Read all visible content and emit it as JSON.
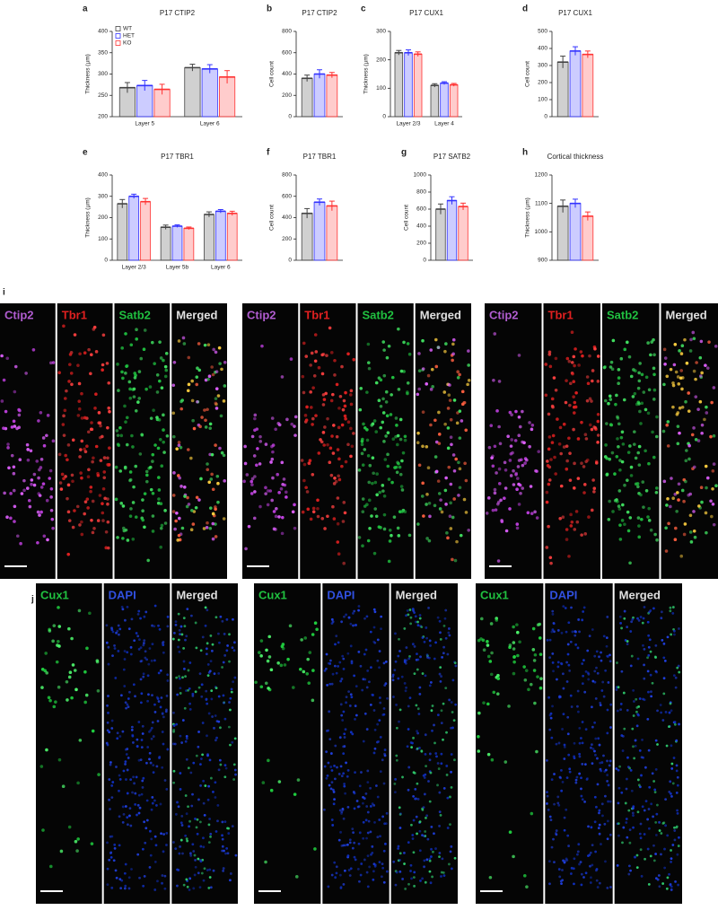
{
  "chart_data": [
    {
      "type": "bar",
      "label": "a",
      "title": "P17 CTIP2",
      "ylabel": "Thickness (µm)",
      "categories": [
        "Layer 5",
        "Layer 6"
      ],
      "ylim": [
        200,
        400
      ],
      "yticks": [
        200,
        250,
        300,
        350,
        400
      ],
      "legend": "top-left",
      "series": [
        {
          "name": "WT",
          "color": "#444444",
          "values": [
            268,
            315
          ],
          "errors": [
            12,
            8
          ]
        },
        {
          "name": "HET",
          "color": "#3333ff",
          "values": [
            273,
            312
          ],
          "errors": [
            12,
            10
          ]
        },
        {
          "name": "KO",
          "color": "#ff3333",
          "values": [
            264,
            293
          ],
          "errors": [
            12,
            15
          ]
        }
      ]
    },
    {
      "type": "bar",
      "label": "b",
      "title": "P17 CTIP2",
      "ylabel": "Cell count",
      "categories": [
        null
      ],
      "ylim": [
        0,
        800
      ],
      "yticks": [
        0,
        200,
        400,
        600,
        800
      ],
      "series": [
        {
          "color": "#444444",
          "values": [
            360
          ],
          "errors": [
            30
          ]
        },
        {
          "color": "#3333ff",
          "values": [
            400
          ],
          "errors": [
            40
          ]
        },
        {
          "color": "#ff3333",
          "values": [
            390
          ],
          "errors": [
            25
          ]
        }
      ]
    },
    {
      "type": "bar",
      "label": "c",
      "title": "P17 CUX1",
      "ylabel": "Thickness (µm)",
      "categories": [
        "Layer 2/3",
        "Layer 4"
      ],
      "ylim": [
        0,
        300
      ],
      "yticks": [
        0,
        100,
        200,
        300
      ],
      "series": [
        {
          "color": "#444444",
          "values": [
            225,
            110
          ],
          "errors": [
            8,
            6
          ]
        },
        {
          "color": "#3333ff",
          "values": [
            225,
            118
          ],
          "errors": [
            10,
            5
          ]
        },
        {
          "color": "#ff3333",
          "values": [
            220,
            112
          ],
          "errors": [
            8,
            5
          ]
        }
      ]
    },
    {
      "type": "bar",
      "label": "d",
      "title": "P17 CUX1",
      "ylabel": "Cell count",
      "categories": [
        null
      ],
      "ylim": [
        0,
        500
      ],
      "yticks": [
        0,
        100,
        200,
        300,
        400,
        500
      ],
      "series": [
        {
          "color": "#444444",
          "values": [
            320
          ],
          "errors": [
            35
          ]
        },
        {
          "color": "#3333ff",
          "values": [
            385
          ],
          "errors": [
            25
          ]
        },
        {
          "color": "#ff3333",
          "values": [
            365
          ],
          "errors": [
            20
          ]
        }
      ]
    },
    {
      "type": "bar",
      "label": "e",
      "title": "P17 TBR1",
      "ylabel": "Thickness (µm)",
      "categories": [
        "Layer 2/3",
        "Layer 5b",
        "Layer 6"
      ],
      "ylim": [
        0,
        400
      ],
      "yticks": [
        0,
        100,
        200,
        300,
        400
      ],
      "series": [
        {
          "color": "#444444",
          "values": [
            265,
            155,
            215
          ],
          "errors": [
            20,
            10,
            12
          ]
        },
        {
          "color": "#3333ff",
          "values": [
            300,
            160,
            230
          ],
          "errors": [
            10,
            6,
            8
          ]
        },
        {
          "color": "#ff3333",
          "values": [
            275,
            150,
            220
          ],
          "errors": [
            15,
            6,
            10
          ]
        }
      ]
    },
    {
      "type": "bar",
      "label": "f",
      "title": "P17 TBR1",
      "ylabel": "Cell count",
      "categories": [
        null
      ],
      "ylim": [
        0,
        800
      ],
      "yticks": [
        0,
        200,
        400,
        600,
        800
      ],
      "series": [
        {
          "color": "#444444",
          "values": [
            440
          ],
          "errors": [
            45
          ]
        },
        {
          "color": "#3333ff",
          "values": [
            545
          ],
          "errors": [
            30
          ]
        },
        {
          "color": "#ff3333",
          "values": [
            510
          ],
          "errors": [
            45
          ]
        }
      ]
    },
    {
      "type": "bar",
      "label": "g",
      "title": "P17 SATB2",
      "ylabel": "Cell count",
      "categories": [
        null
      ],
      "ylim": [
        0,
        1000
      ],
      "yticks": [
        0,
        200,
        400,
        600,
        800,
        1000
      ],
      "series": [
        {
          "color": "#444444",
          "values": [
            600
          ],
          "errors": [
            60
          ]
        },
        {
          "color": "#3333ff",
          "values": [
            700
          ],
          "errors": [
            45
          ]
        },
        {
          "color": "#ff3333",
          "values": [
            630
          ],
          "errors": [
            40
          ]
        }
      ]
    },
    {
      "type": "bar",
      "label": "h",
      "title": "Cortical thickness",
      "ylabel": "Thickness (µm)",
      "categories": [
        null
      ],
      "ylim": [
        900,
        1200
      ],
      "yticks": [
        900,
        1000,
        1100,
        1200
      ],
      "series": [
        {
          "color": "#444444",
          "values": [
            1090
          ],
          "errors": [
            22
          ]
        },
        {
          "color": "#3333ff",
          "values": [
            1100
          ],
          "errors": [
            15
          ]
        },
        {
          "color": "#ff3333",
          "values": [
            1055
          ],
          "errors": [
            15
          ]
        }
      ]
    }
  ],
  "panel_i": {
    "label": "i",
    "groups": [
      [
        "Ctip2",
        "Tbr1",
        "Satb2",
        "Merged"
      ],
      [
        "Ctip2",
        "Tbr1",
        "Satb2",
        "Merged"
      ],
      [
        "Ctip2",
        "Tbr1",
        "Satb2",
        "Merged"
      ]
    ]
  },
  "panel_j": {
    "label": "j",
    "groups": [
      [
        "Cux1",
        "DAPI",
        "Merged"
      ],
      [
        "Cux1",
        "DAPI",
        "Merged"
      ],
      [
        "Cux1",
        "DAPI",
        "Merged"
      ]
    ]
  }
}
